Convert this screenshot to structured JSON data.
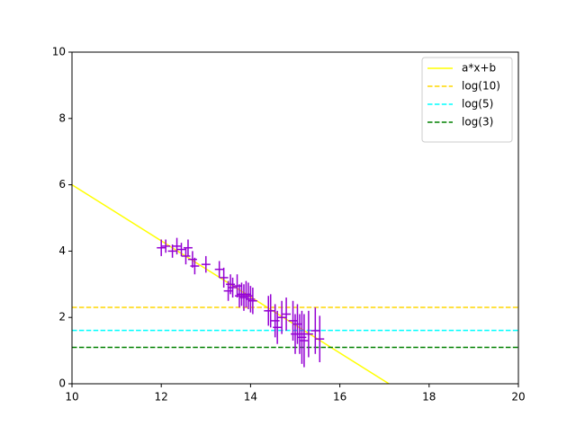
{
  "chart_data": {
    "type": "errorbar",
    "xlim": [
      10,
      20
    ],
    "xticks": [
      10,
      12,
      14,
      16,
      18,
      20
    ],
    "ylim": [
      0,
      10
    ],
    "yticks": [
      0,
      2,
      4,
      6,
      8,
      10
    ],
    "legend": "upper right",
    "lines": [
      {
        "name": "a*x+b",
        "color": "#ffff00",
        "style": "solid",
        "x": [
          10,
          17.1
        ],
        "values": [
          6,
          0
        ]
      },
      {
        "name": "log(10)",
        "color": "#ffd700",
        "style": "dashed",
        "x": [
          10,
          20
        ],
        "values": [
          2.303,
          2.303
        ]
      },
      {
        "name": "log(5)",
        "color": "#00ffff",
        "style": "dashed",
        "x": [
          10,
          20
        ],
        "values": [
          1.609,
          1.609
        ]
      },
      {
        "name": "log(3)",
        "color": "#008000",
        "style": "dashed",
        "x": [
          10,
          20
        ],
        "values": [
          1.099,
          1.099
        ]
      }
    ],
    "errorbar": {
      "color": "#9400d3",
      "x": [
        12.0,
        12.1,
        12.25,
        12.35,
        12.45,
        12.55,
        12.6,
        12.7,
        12.75,
        13.0,
        13.3,
        13.4,
        13.5,
        13.55,
        13.6,
        13.7,
        13.75,
        13.8,
        13.85,
        13.9,
        13.95,
        14.0,
        14.05,
        14.4,
        14.45,
        14.55,
        14.6,
        14.7,
        14.8,
        14.95,
        15.0,
        15.05,
        15.1,
        15.15,
        15.2,
        15.3,
        15.45,
        15.55
      ],
      "values": [
        4.1,
        4.15,
        4.0,
        4.15,
        4.05,
        3.85,
        4.1,
        3.75,
        3.55,
        3.6,
        3.45,
        3.2,
        2.8,
        3.0,
        2.9,
        2.95,
        2.65,
        2.7,
        2.6,
        2.7,
        2.65,
        2.55,
        2.5,
        2.2,
        2.2,
        1.9,
        1.7,
        2.0,
        2.1,
        1.9,
        1.5,
        1.8,
        1.5,
        1.4,
        1.3,
        1.5,
        1.6,
        1.35
      ],
      "yerr": [
        0.25,
        0.2,
        0.2,
        0.25,
        0.2,
        0.25,
        0.25,
        0.25,
        0.25,
        0.25,
        0.25,
        0.3,
        0.3,
        0.3,
        0.3,
        0.35,
        0.35,
        0.35,
        0.4,
        0.4,
        0.4,
        0.4,
        0.4,
        0.45,
        0.5,
        0.5,
        0.5,
        0.5,
        0.5,
        0.6,
        0.6,
        0.6,
        0.6,
        0.8,
        0.8,
        0.7,
        0.7,
        0.7
      ],
      "xerr": 0.1
    }
  }
}
